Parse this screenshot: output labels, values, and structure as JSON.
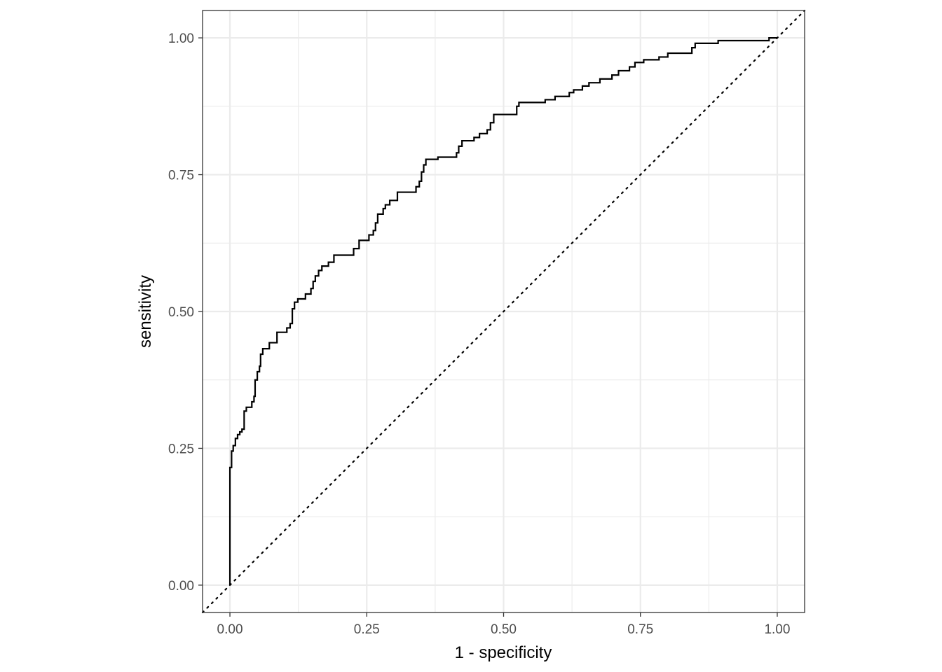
{
  "chart_data": {
    "type": "line",
    "title": "",
    "xlabel": "1 - specificity",
    "ylabel": "sensitivity",
    "xlim": [
      -0.05,
      1.05
    ],
    "ylim": [
      -0.05,
      1.05
    ],
    "x_ticks": [
      0,
      0.25,
      0.5,
      0.75,
      1
    ],
    "x_tick_labels": [
      "0.00",
      "0.25",
      "0.50",
      "0.75",
      "1.00"
    ],
    "y_ticks": [
      0,
      0.25,
      0.5,
      0.75,
      1
    ],
    "y_tick_labels": [
      "0.00",
      "0.25",
      "0.50",
      "0.75",
      "1.00"
    ],
    "grid": true,
    "minor_grid": [
      0.125,
      0.375,
      0.625,
      0.875
    ],
    "aspect": "equal",
    "colors": {
      "curve": "#000000",
      "grid": "#ebebeb",
      "border": "#333333",
      "background": "#ffffff"
    },
    "series": [
      {
        "style": "step",
        "points": [
          [
            0.0,
            0.0
          ],
          [
            0.0,
            0.215
          ],
          [
            0.003,
            0.215
          ],
          [
            0.003,
            0.245
          ],
          [
            0.006,
            0.245
          ],
          [
            0.006,
            0.255
          ],
          [
            0.01,
            0.255
          ],
          [
            0.01,
            0.268
          ],
          [
            0.014,
            0.268
          ],
          [
            0.014,
            0.275
          ],
          [
            0.018,
            0.275
          ],
          [
            0.018,
            0.28
          ],
          [
            0.022,
            0.28
          ],
          [
            0.022,
            0.285
          ],
          [
            0.026,
            0.285
          ],
          [
            0.026,
            0.292
          ],
          [
            0.026,
            0.318
          ],
          [
            0.03,
            0.318
          ],
          [
            0.03,
            0.325
          ],
          [
            0.04,
            0.325
          ],
          [
            0.04,
            0.335
          ],
          [
            0.044,
            0.335
          ],
          [
            0.044,
            0.345
          ],
          [
            0.046,
            0.345
          ],
          [
            0.046,
            0.375
          ],
          [
            0.05,
            0.375
          ],
          [
            0.05,
            0.39
          ],
          [
            0.054,
            0.39
          ],
          [
            0.054,
            0.4
          ],
          [
            0.056,
            0.4
          ],
          [
            0.056,
            0.422
          ],
          [
            0.06,
            0.422
          ],
          [
            0.06,
            0.432
          ],
          [
            0.072,
            0.432
          ],
          [
            0.072,
            0.443
          ],
          [
            0.086,
            0.443
          ],
          [
            0.086,
            0.462
          ],
          [
            0.104,
            0.462
          ],
          [
            0.104,
            0.47
          ],
          [
            0.11,
            0.47
          ],
          [
            0.11,
            0.478
          ],
          [
            0.114,
            0.478
          ],
          [
            0.114,
            0.505
          ],
          [
            0.118,
            0.505
          ],
          [
            0.118,
            0.517
          ],
          [
            0.124,
            0.517
          ],
          [
            0.124,
            0.523
          ],
          [
            0.138,
            0.523
          ],
          [
            0.138,
            0.532
          ],
          [
            0.148,
            0.532
          ],
          [
            0.148,
            0.542
          ],
          [
            0.152,
            0.542
          ],
          [
            0.152,
            0.555
          ],
          [
            0.156,
            0.555
          ],
          [
            0.156,
            0.565
          ],
          [
            0.162,
            0.565
          ],
          [
            0.162,
            0.575
          ],
          [
            0.168,
            0.575
          ],
          [
            0.168,
            0.583
          ],
          [
            0.18,
            0.583
          ],
          [
            0.18,
            0.59
          ],
          [
            0.19,
            0.59
          ],
          [
            0.19,
            0.603
          ],
          [
            0.226,
            0.603
          ],
          [
            0.226,
            0.615
          ],
          [
            0.236,
            0.615
          ],
          [
            0.236,
            0.63
          ],
          [
            0.254,
            0.63
          ],
          [
            0.254,
            0.64
          ],
          [
            0.262,
            0.64
          ],
          [
            0.262,
            0.648
          ],
          [
            0.266,
            0.648
          ],
          [
            0.266,
            0.662
          ],
          [
            0.27,
            0.662
          ],
          [
            0.27,
            0.678
          ],
          [
            0.28,
            0.678
          ],
          [
            0.28,
            0.688
          ],
          [
            0.284,
            0.688
          ],
          [
            0.284,
            0.695
          ],
          [
            0.292,
            0.695
          ],
          [
            0.292,
            0.703
          ],
          [
            0.306,
            0.703
          ],
          [
            0.306,
            0.718
          ],
          [
            0.34,
            0.718
          ],
          [
            0.34,
            0.728
          ],
          [
            0.346,
            0.728
          ],
          [
            0.346,
            0.738
          ],
          [
            0.35,
            0.738
          ],
          [
            0.35,
            0.755
          ],
          [
            0.354,
            0.755
          ],
          [
            0.354,
            0.768
          ],
          [
            0.358,
            0.768
          ],
          [
            0.358,
            0.778
          ],
          [
            0.38,
            0.778
          ],
          [
            0.38,
            0.782
          ],
          [
            0.414,
            0.782
          ],
          [
            0.414,
            0.79
          ],
          [
            0.418,
            0.79
          ],
          [
            0.418,
            0.802
          ],
          [
            0.424,
            0.802
          ],
          [
            0.424,
            0.812
          ],
          [
            0.446,
            0.812
          ],
          [
            0.446,
            0.818
          ],
          [
            0.456,
            0.818
          ],
          [
            0.456,
            0.825
          ],
          [
            0.47,
            0.825
          ],
          [
            0.47,
            0.832
          ],
          [
            0.476,
            0.832
          ],
          [
            0.476,
            0.845
          ],
          [
            0.482,
            0.845
          ],
          [
            0.482,
            0.86
          ],
          [
            0.524,
            0.86
          ],
          [
            0.524,
            0.875
          ],
          [
            0.528,
            0.875
          ],
          [
            0.528,
            0.882
          ],
          [
            0.576,
            0.882
          ],
          [
            0.576,
            0.887
          ],
          [
            0.594,
            0.887
          ],
          [
            0.594,
            0.893
          ],
          [
            0.62,
            0.893
          ],
          [
            0.62,
            0.9
          ],
          [
            0.628,
            0.9
          ],
          [
            0.628,
            0.905
          ],
          [
            0.644,
            0.905
          ],
          [
            0.644,
            0.912
          ],
          [
            0.656,
            0.912
          ],
          [
            0.656,
            0.918
          ],
          [
            0.676,
            0.918
          ],
          [
            0.676,
            0.925
          ],
          [
            0.698,
            0.925
          ],
          [
            0.698,
            0.932
          ],
          [
            0.71,
            0.932
          ],
          [
            0.71,
            0.94
          ],
          [
            0.73,
            0.94
          ],
          [
            0.73,
            0.947
          ],
          [
            0.74,
            0.947
          ],
          [
            0.74,
            0.955
          ],
          [
            0.756,
            0.955
          ],
          [
            0.756,
            0.96
          ],
          [
            0.784,
            0.96
          ],
          [
            0.784,
            0.965
          ],
          [
            0.8,
            0.965
          ],
          [
            0.8,
            0.972
          ],
          [
            0.844,
            0.972
          ],
          [
            0.844,
            0.982
          ],
          [
            0.85,
            0.982
          ],
          [
            0.85,
            0.99
          ],
          [
            0.892,
            0.99
          ],
          [
            0.892,
            0.995
          ],
          [
            0.985,
            0.995
          ],
          [
            0.985,
            1.0
          ],
          [
            1.0,
            1.0
          ]
        ]
      }
    ],
    "reference_line": {
      "style": "dotted",
      "from": [
        -0.05,
        -0.05
      ],
      "to": [
        1.05,
        1.05
      ]
    }
  }
}
